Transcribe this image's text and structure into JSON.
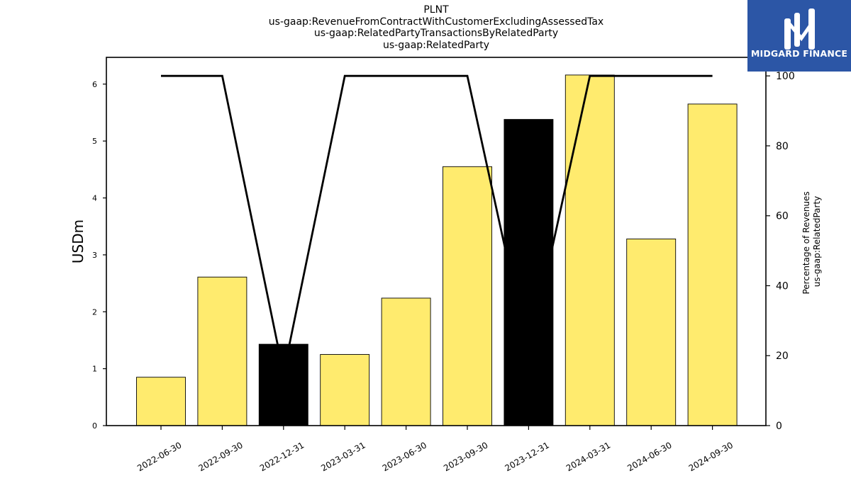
{
  "title_lines": [
    "PLNT",
    "us-gaap:RevenueFromContractWithCustomerExcludingAssessedTax",
    "us-gaap:RelatedPartyTransactionsByRelatedParty",
    "us-gaap:RelatedParty"
  ],
  "logo": {
    "text": "MIDGARD FINANCE",
    "background": "#2c56a6"
  },
  "chart_data": {
    "type": "bar",
    "categories": [
      "2022-06-30",
      "2022-09-30",
      "2022-12-31",
      "2023-03-31",
      "2023-06-30",
      "2023-09-30",
      "2023-12-31",
      "2024-03-31",
      "2024-06-30",
      "2024-09-30"
    ],
    "series": [
      {
        "type": "bar",
        "axis": "left",
        "values": [
          0.85,
          2.61,
          1.43,
          1.25,
          2.24,
          4.55,
          5.38,
          6.16,
          3.28,
          5.65
        ],
        "colors": [
          "#ffeb6e",
          "#ffeb6e",
          "#000000",
          "#ffeb6e",
          "#ffeb6e",
          "#ffeb6e",
          "#000000",
          "#ffeb6e",
          "#ffeb6e",
          "#ffeb6e"
        ]
      },
      {
        "type": "line",
        "axis": "right",
        "color": "#000000",
        "values": [
          100,
          100,
          15,
          100,
          100,
          100,
          20,
          100,
          100,
          100
        ]
      }
    ],
    "ylabel": "USDm",
    "ylabel_right_lines": [
      "Percentage of Revenues",
      "us-gaap:RelatedParty"
    ],
    "ylim": [
      0,
      6.47
    ],
    "ylim_right": [
      0,
      105.3
    ],
    "yticks": [
      0,
      1,
      2,
      3,
      4,
      5,
      6
    ],
    "yticks_right": [
      0,
      20,
      40,
      60,
      80,
      100
    ],
    "grid": false,
    "legend": "none"
  }
}
